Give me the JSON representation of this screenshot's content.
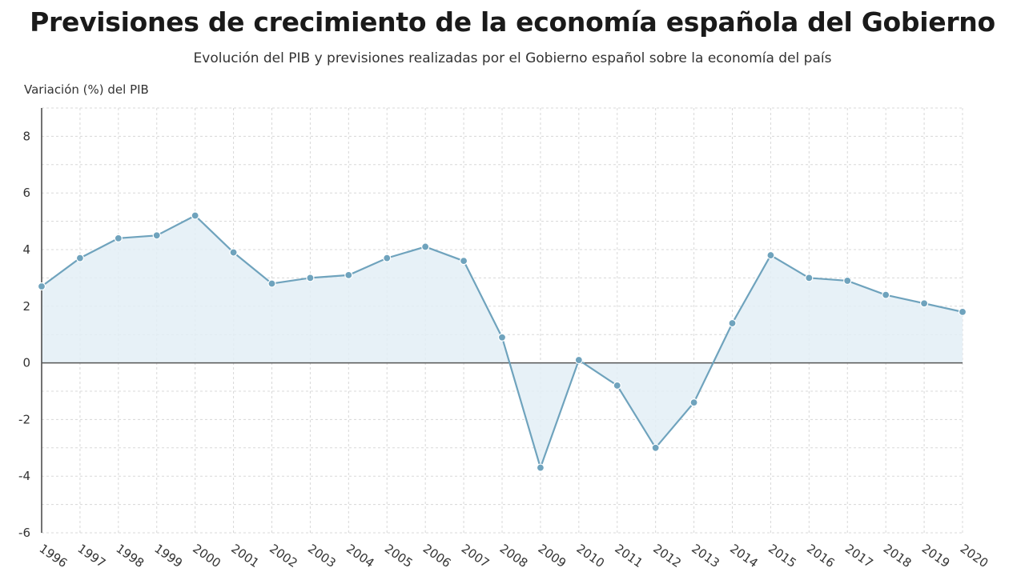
{
  "title": "Previsiones de crecimiento de la economía española del Gobierno",
  "subtitle": "Evolución del PIB y previsiones realizadas por el Gobierno español sobre la economía del país",
  "colors": {
    "line": "#6fa3bd",
    "marker": "#6fa3bd",
    "area": "#e3eef6",
    "grid": "#d8d8d8",
    "zero_line": "#555555"
  },
  "chart_data": {
    "type": "area",
    "ylabel": "Variación (%) del PIB",
    "xlabel": "",
    "ylim": [
      -6,
      9
    ],
    "yticks": [
      -6,
      -4,
      -2,
      0,
      2,
      4,
      6,
      8
    ],
    "grid": true,
    "categories": [
      "1996",
      "1997",
      "1998",
      "1999",
      "2000",
      "2001",
      "2002",
      "2003",
      "2004",
      "2005",
      "2006",
      "2007",
      "2008",
      "2009",
      "2010",
      "2011",
      "2012",
      "2013",
      "2014",
      "2015",
      "2016",
      "2017",
      "2018",
      "2019",
      "2020"
    ],
    "values": [
      2.7,
      3.7,
      4.4,
      4.5,
      5.2,
      3.9,
      2.8,
      3.0,
      3.1,
      3.7,
      4.1,
      3.6,
      0.9,
      -3.7,
      0.1,
      -0.8,
      -3.0,
      -1.4,
      1.4,
      3.8,
      3.0,
      2.9,
      2.4,
      2.1,
      1.8
    ]
  }
}
